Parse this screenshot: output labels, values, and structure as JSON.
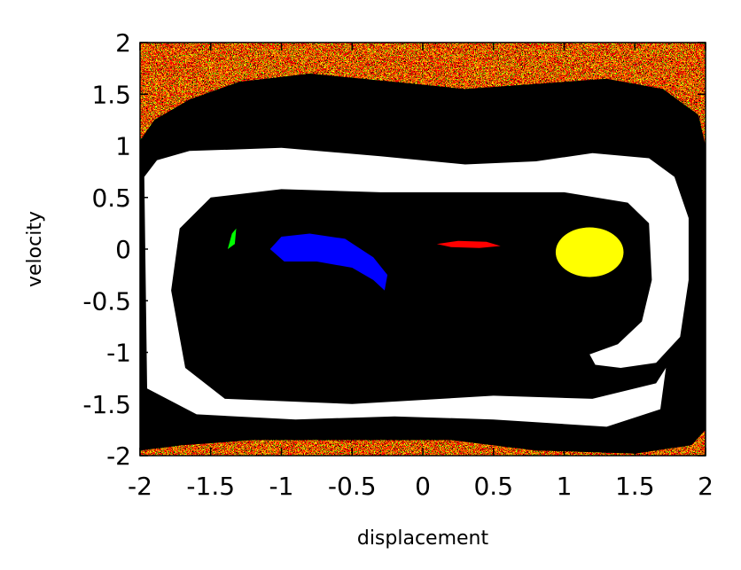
{
  "chart_data": {
    "type": "heatmap",
    "title": "",
    "xlabel": "displacement",
    "ylabel": "velocity",
    "xlim": [
      -2,
      2
    ],
    "ylim": [
      -2,
      2
    ],
    "x_ticks": [
      -2,
      -1.5,
      -1,
      -0.5,
      0,
      0.5,
      1,
      1.5,
      2
    ],
    "x_tick_labels": [
      "-2",
      "-1.5",
      "-1",
      "-0.5",
      "0",
      "0.5",
      "1",
      "1.5",
      "2"
    ],
    "y_ticks": [
      2,
      1.5,
      1,
      0.5,
      0,
      -0.5,
      -1,
      -1.5,
      -2
    ],
    "y_tick_labels": [
      "2",
      "1.5",
      "1",
      "0.5",
      "0",
      "-0.5",
      "-1",
      "-1.5",
      "-2"
    ],
    "grid": false,
    "legend": "none",
    "colors": {
      "basin_outer": "#000000",
      "basin_left": "#0000ff",
      "basin_right": "#ffff00",
      "basin_red": "#ff0000",
      "basin_green": "#00ff00",
      "background": "#ffffff"
    },
    "regions": [
      {
        "name": "outer-black-band",
        "color": "basin_outer",
        "path": [
          [
            -2,
            1.05
          ],
          [
            -1.9,
            1.25
          ],
          [
            -1.65,
            1.45
          ],
          [
            -1.3,
            1.62
          ],
          [
            -0.8,
            1.7
          ],
          [
            -0.2,
            1.62
          ],
          [
            0.3,
            1.55
          ],
          [
            0.8,
            1.6
          ],
          [
            1.3,
            1.65
          ],
          [
            1.7,
            1.55
          ],
          [
            1.95,
            1.3
          ],
          [
            2,
            1.0
          ],
          [
            2,
            -1.75
          ],
          [
            1.9,
            -1.9
          ],
          [
            1.5,
            -1.98
          ],
          [
            0.8,
            -1.95
          ],
          [
            0.2,
            -1.85
          ],
          [
            -0.5,
            -1.85
          ],
          [
            -1.2,
            -1.85
          ],
          [
            -1.7,
            -1.9
          ],
          [
            -2,
            -1.95
          ],
          [
            -2,
            1.05
          ]
        ]
      },
      {
        "name": "inner-light-region",
        "color": "background",
        "path": [
          [
            -1.95,
            -1.35
          ],
          [
            -1.97,
            0.7
          ],
          [
            -1.88,
            0.86
          ],
          [
            -1.65,
            0.95
          ],
          [
            -1.0,
            0.98
          ],
          [
            -0.3,
            0.9
          ],
          [
            0.3,
            0.82
          ],
          [
            0.8,
            0.85
          ],
          [
            1.2,
            0.93
          ],
          [
            1.6,
            0.88
          ],
          [
            1.78,
            0.7
          ],
          [
            1.88,
            0.3
          ],
          [
            1.88,
            -0.3
          ],
          [
            1.82,
            -0.85
          ],
          [
            1.65,
            -1.1
          ],
          [
            1.4,
            -1.15
          ],
          [
            1.22,
            -1.12
          ],
          [
            1.18,
            -1.02
          ],
          [
            1.38,
            -0.92
          ],
          [
            1.55,
            -0.7
          ],
          [
            1.62,
            -0.3
          ],
          [
            1.6,
            0.25
          ],
          [
            1.45,
            0.45
          ],
          [
            1.0,
            0.55
          ],
          [
            0.3,
            0.55
          ],
          [
            -0.3,
            0.55
          ],
          [
            -1.0,
            0.58
          ],
          [
            -1.5,
            0.5
          ],
          [
            -1.72,
            0.2
          ],
          [
            -1.78,
            -0.4
          ],
          [
            -1.68,
            -1.15
          ],
          [
            -1.4,
            -1.45
          ],
          [
            -0.5,
            -1.5
          ],
          [
            0.5,
            -1.42
          ],
          [
            1.2,
            -1.45
          ],
          [
            1.65,
            -1.3
          ],
          [
            1.72,
            -1.15
          ],
          [
            1.68,
            -1.55
          ],
          [
            1.3,
            -1.72
          ],
          [
            0.5,
            -1.65
          ],
          [
            -0.2,
            -1.62
          ],
          [
            -0.9,
            -1.65
          ],
          [
            -1.6,
            -1.6
          ],
          [
            -1.95,
            -1.35
          ]
        ]
      },
      {
        "name": "left-blue-basin",
        "color": "basin_left",
        "path": [
          [
            -1.08,
            0.0
          ],
          [
            -1.0,
            0.12
          ],
          [
            -0.8,
            0.15
          ],
          [
            -0.55,
            0.1
          ],
          [
            -0.35,
            -0.08
          ],
          [
            -0.25,
            -0.25
          ],
          [
            -0.27,
            -0.4
          ],
          [
            -0.35,
            -0.3
          ],
          [
            -0.5,
            -0.18
          ],
          [
            -0.75,
            -0.12
          ],
          [
            -0.98,
            -0.12
          ],
          [
            -1.08,
            0.0
          ]
        ]
      },
      {
        "name": "right-yellow-basin",
        "color": "basin_right",
        "type": "ellipse",
        "cx": 1.18,
        "cy": -0.03,
        "rx": 0.24,
        "ry": 0.24
      },
      {
        "name": "center-red-streak",
        "color": "basin_red",
        "path": [
          [
            0.1,
            0.05
          ],
          [
            0.25,
            0.08
          ],
          [
            0.45,
            0.07
          ],
          [
            0.55,
            0.03
          ],
          [
            0.4,
            0.01
          ],
          [
            0.2,
            0.02
          ],
          [
            0.1,
            0.05
          ]
        ]
      },
      {
        "name": "left-green-streak",
        "color": "basin_green",
        "path": [
          [
            -1.38,
            0.0
          ],
          [
            -1.35,
            0.15
          ],
          [
            -1.32,
            0.2
          ],
          [
            -1.33,
            0.05
          ],
          [
            -1.38,
            0.0
          ]
        ]
      }
    ]
  }
}
